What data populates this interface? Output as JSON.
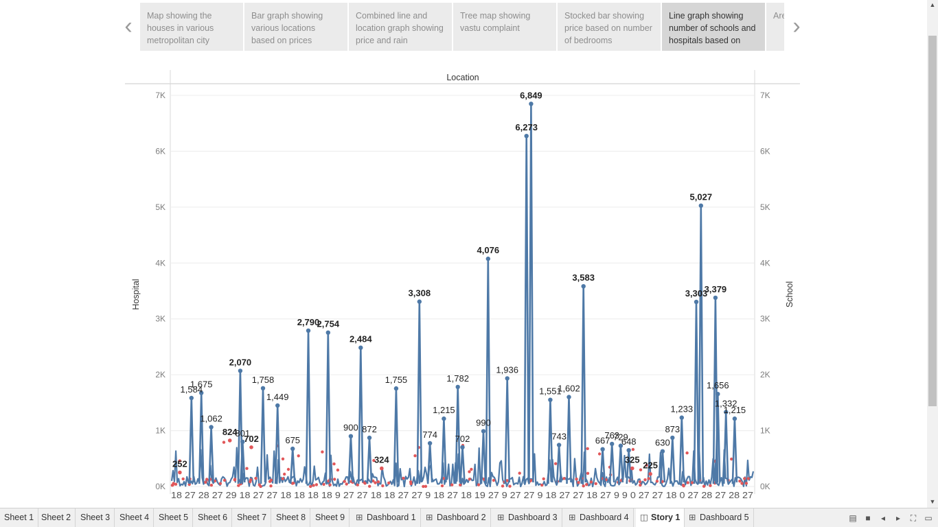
{
  "story": {
    "points": [
      {
        "caption": "Map showing the houses in various metropolitan city",
        "active": false
      },
      {
        "caption": "Bar graph showing various locations based on prices",
        "active": false
      },
      {
        "caption": "Combined line and location graph showing price and  rain",
        "active": false
      },
      {
        "caption": "Tree map showing vastu complaint",
        "active": false
      },
      {
        "caption": "Stocked bar showing price based on number of bedrooms",
        "active": false
      },
      {
        "caption": "Line graph showing number of schools and hospitals based on",
        "active": true
      },
      {
        "caption": "Area graph ma",
        "active": false
      }
    ],
    "prev_icon": "chevron-left-icon",
    "next_icon": "chevron-right-icon"
  },
  "chart_data": {
    "type": "line",
    "title": "Location",
    "ylabel_left": "Hospital",
    "ylabel_right": "School",
    "ylim": [
      0,
      7000
    ],
    "y_ticks": [
      "0K",
      "1K",
      "2K",
      "3K",
      "4K",
      "5K",
      "6K",
      "7K"
    ],
    "series": [
      {
        "name": "School",
        "color": "#4e79a7",
        "labeled_peaks": [
          {
            "x": 0.034,
            "value": 1584,
            "label": "1,584"
          },
          {
            "x": 0.051,
            "value": 1675,
            "label": "1,675"
          },
          {
            "x": 0.068,
            "value": 1062,
            "label": "1,062"
          },
          {
            "x": 0.118,
            "value": 2070,
            "label": "2,070"
          },
          {
            "x": 0.122,
            "value": 801,
            "label": "801"
          },
          {
            "x": 0.157,
            "value": 1758,
            "label": "1,758"
          },
          {
            "x": 0.182,
            "value": 1449,
            "label": "1,449"
          },
          {
            "x": 0.208,
            "value": 675,
            "label": "675"
          },
          {
            "x": 0.235,
            "value": 2790,
            "label": "2,790"
          },
          {
            "x": 0.269,
            "value": 2754,
            "label": "2,754"
          },
          {
            "x": 0.308,
            "value": 900,
            "label": "900"
          },
          {
            "x": 0.325,
            "value": 2484,
            "label": "2,484"
          },
          {
            "x": 0.34,
            "value": 872,
            "label": "872"
          },
          {
            "x": 0.386,
            "value": 1755,
            "label": "1,755"
          },
          {
            "x": 0.426,
            "value": 3308,
            "label": "3,308"
          },
          {
            "x": 0.444,
            "value": 774,
            "label": "774"
          },
          {
            "x": 0.468,
            "value": 1215,
            "label": "1,215"
          },
          {
            "x": 0.492,
            "value": 1782,
            "label": "1,782"
          },
          {
            "x": 0.5,
            "value": 702,
            "label": "702"
          },
          {
            "x": 0.536,
            "value": 990,
            "label": "990"
          },
          {
            "x": 0.544,
            "value": 4076,
            "label": "4,076"
          },
          {
            "x": 0.577,
            "value": 1936,
            "label": "1,936"
          },
          {
            "x": 0.61,
            "value": 6273,
            "label": "6,273"
          },
          {
            "x": 0.618,
            "value": 6849,
            "label": "6,849"
          },
          {
            "x": 0.651,
            "value": 1551,
            "label": "1,551"
          },
          {
            "x": 0.666,
            "value": 743,
            "label": "743"
          },
          {
            "x": 0.683,
            "value": 1602,
            "label": "1,602"
          },
          {
            "x": 0.708,
            "value": 3583,
            "label": "3,583"
          },
          {
            "x": 0.741,
            "value": 667,
            "label": "667"
          },
          {
            "x": 0.757,
            "value": 763,
            "label": "763"
          },
          {
            "x": 0.772,
            "value": 729,
            "label": "729"
          },
          {
            "x": 0.786,
            "value": 648,
            "label": "648"
          },
          {
            "x": 0.844,
            "value": 630,
            "label": "630"
          },
          {
            "x": 0.861,
            "value": 873,
            "label": "873"
          },
          {
            "x": 0.877,
            "value": 1233,
            "label": "1,233"
          },
          {
            "x": 0.902,
            "value": 3303,
            "label": "3,303"
          },
          {
            "x": 0.91,
            "value": 5027,
            "label": "5,027"
          },
          {
            "x": 0.935,
            "value": 3379,
            "label": "3,379"
          },
          {
            "x": 0.939,
            "value": 1656,
            "label": "1,656"
          },
          {
            "x": 0.953,
            "value": 1332,
            "label": "1,332"
          },
          {
            "x": 0.968,
            "value": 1215,
            "label": "1,215"
          }
        ]
      },
      {
        "name": "Hospital",
        "color": "#e15759",
        "labeled_peaks": [
          {
            "x": 0.014,
            "value": 252,
            "label": "252"
          },
          {
            "x": 0.1,
            "value": 824,
            "label": "824"
          },
          {
            "x": 0.137,
            "value": 702,
            "label": "702"
          },
          {
            "x": 0.361,
            "value": 324,
            "label": "324"
          },
          {
            "x": 0.792,
            "value": 325,
            "label": "325"
          },
          {
            "x": 0.823,
            "value": 225,
            "label": "225"
          }
        ]
      }
    ],
    "x_tick_labels": "18 27 28 27 29 18 27 27 18 18 18 18 9 27 27 18 18 27 27 9 18 27 18 19 27 9 27 27 9 18 27 27 18 27 9 9 0 27 27 18 0 27 28 27 28 27"
  },
  "tabs": [
    {
      "label": "Sheet 1",
      "icon": ""
    },
    {
      "label": "Sheet 2",
      "icon": ""
    },
    {
      "label": "Sheet 3",
      "icon": ""
    },
    {
      "label": "Sheet 4",
      "icon": ""
    },
    {
      "label": "Sheet 5",
      "icon": ""
    },
    {
      "label": "Sheet 6",
      "icon": ""
    },
    {
      "label": "Sheet 7",
      "icon": ""
    },
    {
      "label": "Sheet 8",
      "icon": ""
    },
    {
      "label": "Sheet 9",
      "icon": ""
    },
    {
      "label": "Dashboard 1",
      "icon": "dashboard-icon"
    },
    {
      "label": "Dashboard 2",
      "icon": "dashboard-icon"
    },
    {
      "label": "Dashboard 3",
      "icon": "dashboard-icon"
    },
    {
      "label": "Dashboard 4",
      "icon": "dashboard-icon"
    },
    {
      "label": "Story 1",
      "icon": "story-icon",
      "active": true
    },
    {
      "label": "Dashboard 5",
      "icon": "dashboard-icon"
    }
  ],
  "tab_controls": [
    "sheet-sorter-icon",
    "filmstrip-icon",
    "prev-sheet-icon",
    "next-sheet-icon",
    "fullscreen-icon",
    "present-icon"
  ]
}
